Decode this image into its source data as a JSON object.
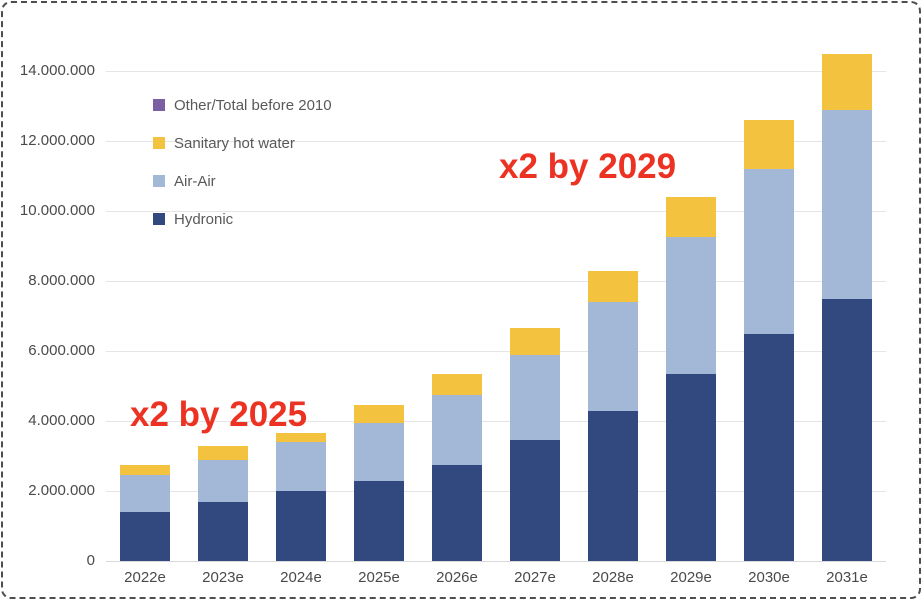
{
  "frame": {
    "background": "#ffffff",
    "border_color": "#4e4e4e"
  },
  "chart_data": {
    "type": "bar",
    "stacked": true,
    "title": "",
    "xlabel": "",
    "ylabel": "",
    "grid": true,
    "categories": [
      "2022e",
      "2023e",
      "2024e",
      "2025e",
      "2026e",
      "2027e",
      "2028e",
      "2029e",
      "2030e",
      "2031e"
    ],
    "series": [
      {
        "name": "Hydronic",
        "color": "#31497E",
        "values": [
          1400000,
          1700000,
          2000000,
          2300000,
          2750000,
          3450000,
          4300000,
          5350000,
          6500000,
          7500000
        ]
      },
      {
        "name": "Air-Air",
        "color": "#A3B8D6",
        "values": [
          1050000,
          1200000,
          1400000,
          1650000,
          2000000,
          2450000,
          3100000,
          3900000,
          4700000,
          5400000
        ]
      },
      {
        "name": "Sanitary hot water",
        "color": "#F3C23F",
        "values": [
          300000,
          400000,
          250000,
          500000,
          600000,
          750000,
          900000,
          1150000,
          1400000,
          1600000
        ]
      },
      {
        "name": "Other/Total before 2010",
        "color": "#7B5FA3",
        "values": [
          0,
          0,
          0,
          0,
          0,
          0,
          0,
          0,
          0,
          0
        ]
      }
    ],
    "totals": [
      2750000,
      3300000,
      3650000,
      4450000,
      5350000,
      6650000,
      8300000,
      10400000,
      12600000,
      14500000
    ],
    "y_axis": {
      "min": 0,
      "max": 14000000,
      "tick_step": 2000000,
      "tick_labels": [
        "0",
        "2.000.000",
        "4.000.000",
        "6.000.000",
        "8.000.000",
        "10.000.000",
        "12.000.000",
        "14.000.000"
      ]
    },
    "legend": {
      "position": "top-left",
      "entries": [
        {
          "label": "Other/Total before 2010",
          "color": "#7B5FA3"
        },
        {
          "label": "Sanitary hot water",
          "color": "#F3C23F"
        },
        {
          "label": "Air-Air",
          "color": "#A3B8D6"
        },
        {
          "label": "Hydronic",
          "color": "#31497E"
        }
      ]
    },
    "annotations": [
      {
        "text": "x2 by 2025",
        "color": "#EC3323"
      },
      {
        "text": "x2 by 2029",
        "color": "#EC3323"
      }
    ]
  }
}
